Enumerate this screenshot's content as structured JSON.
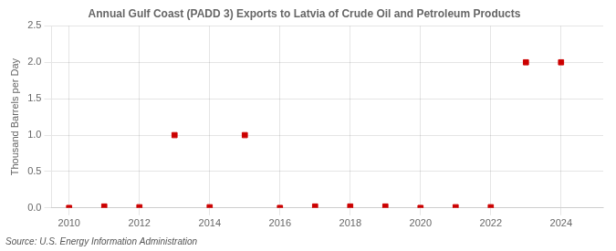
{
  "chart_data": {
    "type": "scatter",
    "title": "Annual Gulf Coast (PADD 3) Exports to Latvia of Crude Oil and Petroleum Products",
    "y_label": "Thousand Barrels per Day",
    "annotations": [
      "Source: U.S. Energy Information Administration"
    ],
    "x": [
      2010,
      2011,
      2012,
      2013,
      2014,
      2015,
      2016,
      2017,
      2018,
      2019,
      2020,
      2021,
      2022,
      2023,
      2024
    ],
    "values": [
      0.0,
      0.02,
      0.01,
      1.0,
      0.01,
      1.0,
      0.0,
      0.02,
      0.02,
      0.02,
      0.0,
      0.01,
      0.01,
      2.0,
      2.0
    ],
    "color": "#cc0000",
    "marker": "square",
    "xlim": [
      2009.5,
      2025.2
    ],
    "xticks": [
      2010,
      2012,
      2014,
      2016,
      2018,
      2020,
      2022,
      2024
    ],
    "ylim": [
      0.0,
      2.5
    ],
    "yticks": [
      {
        "value": 0.0,
        "label": "0.0"
      },
      0.5,
      {
        "value": 1.0,
        "label": "1.0"
      },
      1.5,
      {
        "value": 2.0,
        "label": "2.0"
      },
      2.5
    ],
    "grid": true
  }
}
